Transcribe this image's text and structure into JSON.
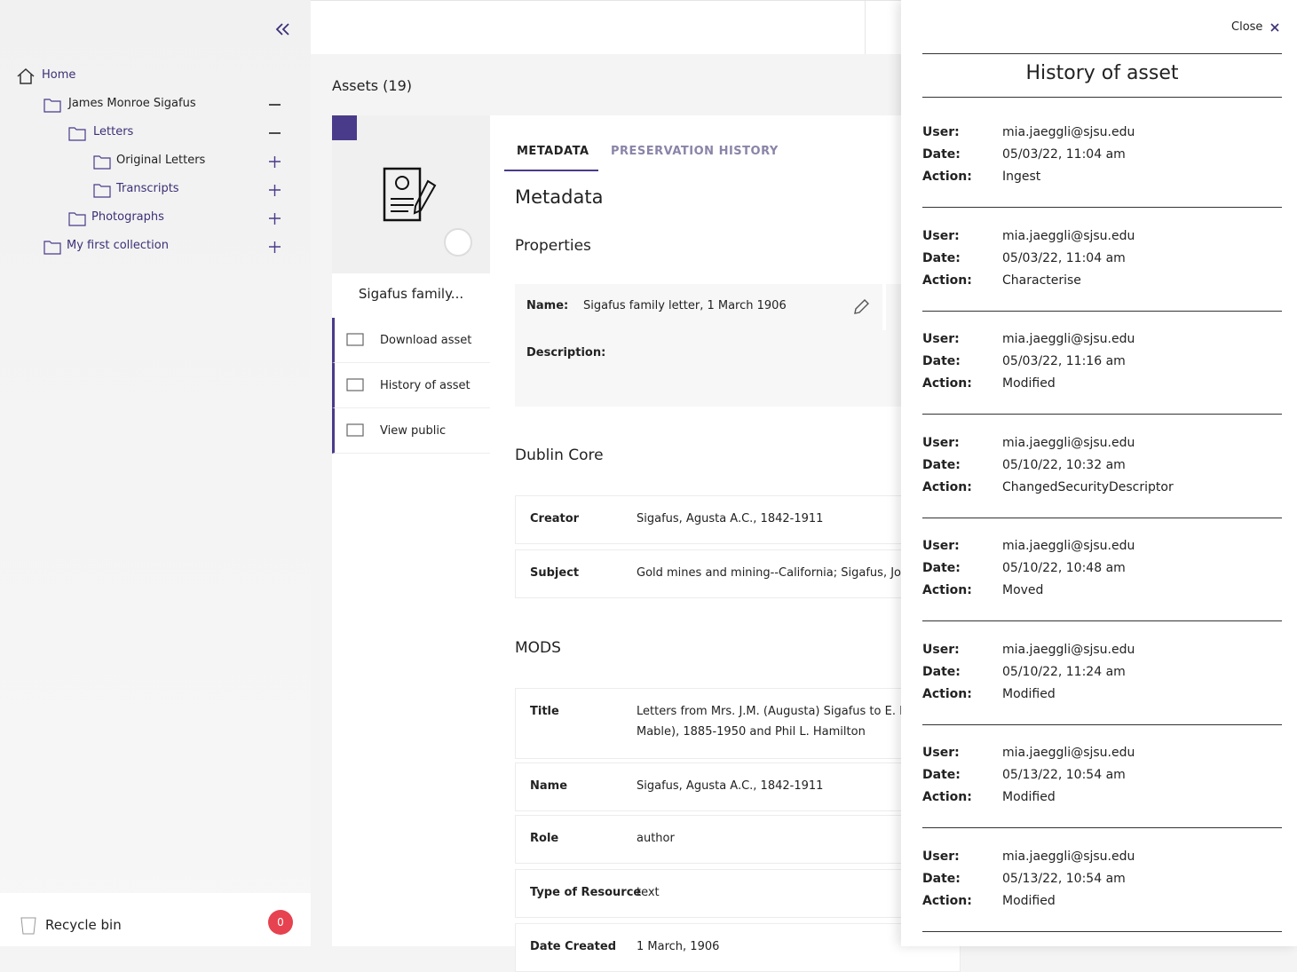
{
  "sidebar": {
    "tree": [
      {
        "label": "Home",
        "depth": 0,
        "toggle": null
      },
      {
        "label": "James Monroe Sigafus",
        "depth": 1,
        "toggle": "minus"
      },
      {
        "label": "Letters",
        "depth": 2,
        "toggle": "minus"
      },
      {
        "label": "Original Letters",
        "depth": 3,
        "toggle": "plus"
      },
      {
        "label": "Transcripts",
        "depth": 3,
        "toggle": "plus"
      },
      {
        "label": "Photographs",
        "depth": 2,
        "toggle": "plus"
      },
      {
        "label": "My first collection",
        "depth": 1,
        "toggle": "plus"
      }
    ],
    "recycle_bin": {
      "label": "Recycle bin",
      "count": 0
    }
  },
  "main": {
    "assets_title": "Assets (19)",
    "asset": {
      "title": "Sigafus family...",
      "actions": [
        "Download asset",
        "History of asset",
        "View public"
      ]
    },
    "tabs": [
      "METADATA",
      "PRESERVATION HISTORY"
    ],
    "metadata_heading": "Metadata",
    "properties": {
      "heading": "Properties",
      "name_label": "Name:",
      "name_value": "Sigafus family letter, 1 March 1906",
      "description_label": "Description:"
    },
    "dublin_core": {
      "heading": "Dublin Core",
      "rows": [
        [
          "Creator",
          "Sigafus, Agusta A.C., 1842-1911"
        ],
        [
          "Subject",
          "Gold mines and mining--California; Sigafus, Jo"
        ]
      ]
    },
    "mods": {
      "heading": "MODS",
      "rows": [
        [
          "Title",
          "Letters from Mrs. J.M. (Augusta) Sigafus to E. Mc",
          "Mable), 1885-1950 and Phil L. Hamilton"
        ],
        [
          "Name",
          "Sigafus, Agusta A.C., 1842-1911"
        ],
        [
          "Role",
          "author"
        ],
        [
          "Type of Resource",
          "text"
        ],
        [
          "Date Created",
          "1 March, 1906"
        ]
      ]
    }
  },
  "history_panel": {
    "close": "Close",
    "title": "History of asset",
    "labels": {
      "user": "User:",
      "date": "Date:",
      "action": "Action:"
    },
    "entries": [
      {
        "user": "mia.jaeggli@sjsu.edu",
        "date": "05/03/22, 11:04 am",
        "action": "Ingest"
      },
      {
        "user": "mia.jaeggli@sjsu.edu",
        "date": "05/03/22, 11:04 am",
        "action": "Characterise"
      },
      {
        "user": "mia.jaeggli@sjsu.edu",
        "date": "05/03/22, 11:16 am",
        "action": "Modified"
      },
      {
        "user": "mia.jaeggli@sjsu.edu",
        "date": "05/10/22, 10:32 am",
        "action": "ChangedSecurityDescriptor"
      },
      {
        "user": "mia.jaeggli@sjsu.edu",
        "date": "05/10/22, 10:48 am",
        "action": "Moved"
      },
      {
        "user": "mia.jaeggli@sjsu.edu",
        "date": "05/10/22, 11:24 am",
        "action": "Modified"
      },
      {
        "user": "mia.jaeggli@sjsu.edu",
        "date": "05/13/22, 10:54 am",
        "action": "Modified"
      },
      {
        "user": "mia.jaeggli@sjsu.edu",
        "date": "05/13/22, 10:54 am",
        "action": "Modified"
      }
    ]
  }
}
